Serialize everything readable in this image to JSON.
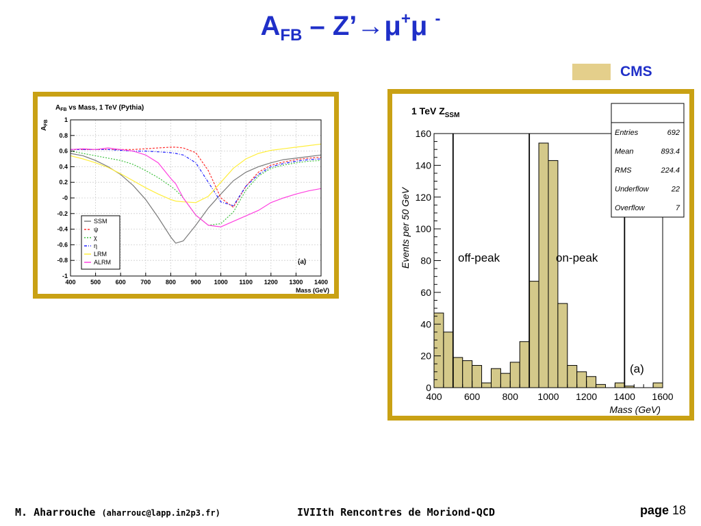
{
  "title": {
    "main": "A",
    "sub": "FB",
    "rest": " – Z’→μ",
    "sup1": "+",
    "mu2": "μ ",
    "sup2": "-"
  },
  "cms_label": "CMS",
  "colors": {
    "accent": "#1f2fc8",
    "frame": "#c9a114",
    "hist_fill": "#d4c98a",
    "legend_swatch": "#e4cf8b"
  },
  "footer": {
    "author": "M. Aharrouche",
    "email": "(aharrouc@lapp.in2p3.fr)",
    "conference": "IVIIth Rencontres de Moriond-QCD",
    "page_label": "page",
    "page_number": "18"
  },
  "chart_data": [
    {
      "type": "line",
      "title": "A_FB vs Mass, 1 TeV (Pythia)",
      "title_parts": {
        "a": "A",
        "sub": "FB",
        "rest": " vs Mass, 1 TeV (Pythia)"
      },
      "ylabel": "A_FB",
      "ylabel_parts": {
        "a": "A",
        "sub": "FB"
      },
      "xlabel": "Mass (GeV)",
      "xlim": [
        400,
        1400
      ],
      "ylim": [
        -1,
        1
      ],
      "xticks": [
        "400",
        "500",
        "600",
        "700",
        "800",
        "900",
        "1000",
        "1100",
        "1200",
        "1300",
        "1400"
      ],
      "yticks": [
        "-1",
        "-0.8",
        "-0.6",
        "-0.4",
        "-0.2",
        "-0",
        "0.2",
        "0.4",
        "0.6",
        "0.8",
        "1"
      ],
      "annotation": "(a)",
      "grid": true,
      "legend_position": "bottom-left",
      "x": [
        400,
        450,
        500,
        550,
        600,
        650,
        700,
        750,
        800,
        820,
        850,
        900,
        950,
        1000,
        1050,
        1100,
        1150,
        1200,
        1250,
        1300,
        1350,
        1400
      ],
      "series": [
        {
          "name": "SSM",
          "color": "#7a7a7a",
          "dash": "",
          "values": [
            0.57,
            0.54,
            0.48,
            0.4,
            0.3,
            0.16,
            -0.02,
            -0.25,
            -0.5,
            -0.58,
            -0.55,
            -0.35,
            -0.13,
            0.05,
            0.22,
            0.33,
            0.4,
            0.45,
            0.49,
            0.51,
            0.53,
            0.55
          ]
        },
        {
          "name": "ψ",
          "color": "#ff3030",
          "dash": "3,2",
          "values": [
            0.62,
            0.62,
            0.62,
            0.62,
            0.62,
            0.62,
            0.63,
            0.64,
            0.65,
            0.65,
            0.64,
            0.58,
            0.35,
            0.0,
            -0.12,
            0.15,
            0.33,
            0.42,
            0.46,
            0.49,
            0.51,
            0.52
          ]
        },
        {
          "name": "χ",
          "color": "#3cc03c",
          "dash": "2,2",
          "values": [
            0.6,
            0.57,
            0.54,
            0.51,
            0.48,
            0.43,
            0.35,
            0.26,
            0.15,
            0.1,
            0.0,
            -0.22,
            -0.35,
            -0.33,
            -0.18,
            0.1,
            0.28,
            0.38,
            0.42,
            0.45,
            0.47,
            0.48
          ]
        },
        {
          "name": "η",
          "color": "#2020ff",
          "dash": "4,2,1,2",
          "values": [
            0.62,
            0.62,
            0.62,
            0.62,
            0.61,
            0.6,
            0.6,
            0.59,
            0.58,
            0.57,
            0.55,
            0.45,
            0.2,
            -0.05,
            -0.1,
            0.15,
            0.3,
            0.4,
            0.44,
            0.47,
            0.49,
            0.5
          ]
        },
        {
          "name": "LRM",
          "color": "#ffee3a",
          "dash": "",
          "values": [
            0.54,
            0.5,
            0.45,
            0.39,
            0.31,
            0.22,
            0.13,
            0.05,
            -0.02,
            -0.04,
            -0.05,
            -0.06,
            0.02,
            0.2,
            0.38,
            0.5,
            0.57,
            0.61,
            0.63,
            0.65,
            0.67,
            0.69
          ]
        },
        {
          "name": "ALRM",
          "color": "#ff40e0",
          "dash": "",
          "values": [
            0.62,
            0.63,
            0.62,
            0.64,
            0.62,
            0.6,
            0.55,
            0.45,
            0.25,
            0.18,
            0.0,
            -0.22,
            -0.35,
            -0.37,
            -0.3,
            -0.23,
            -0.16,
            -0.06,
            0.0,
            0.05,
            0.09,
            0.12
          ]
        }
      ]
    },
    {
      "type": "bar",
      "title": "1 TeV Z_SSM",
      "title_parts": {
        "a": "1 TeV Z",
        "sub": "SSM"
      },
      "xlabel": "Mass (GeV)",
      "ylabel": "Events per 50 GeV",
      "xlim": [
        400,
        1600
      ],
      "ylim": [
        0,
        160
      ],
      "xticks": [
        "400",
        "600",
        "800",
        "1000",
        "1200",
        "1400",
        "1600"
      ],
      "yticks": [
        "0",
        "20",
        "40",
        "60",
        "80",
        "100",
        "120",
        "140",
        "160"
      ],
      "bin_edges_start": 400,
      "bin_width": 50,
      "values": [
        47,
        35,
        19,
        17,
        14,
        3,
        12,
        9,
        16,
        29,
        67,
        154,
        143,
        53,
        14,
        10,
        7,
        2,
        0,
        3,
        1,
        0,
        0,
        3
      ],
      "cut_lines": [
        500,
        900,
        1400
      ],
      "region_labels": [
        "off-peak",
        "on-peak"
      ],
      "annotation": "(a)",
      "stats": [
        {
          "label": "Entries",
          "value": "692"
        },
        {
          "label": "Mean",
          "value": "893.4"
        },
        {
          "label": "RMS",
          "value": "224.4"
        },
        {
          "label": "Underflow",
          "value": "22"
        },
        {
          "label": "Overflow",
          "value": "7"
        }
      ]
    }
  ]
}
